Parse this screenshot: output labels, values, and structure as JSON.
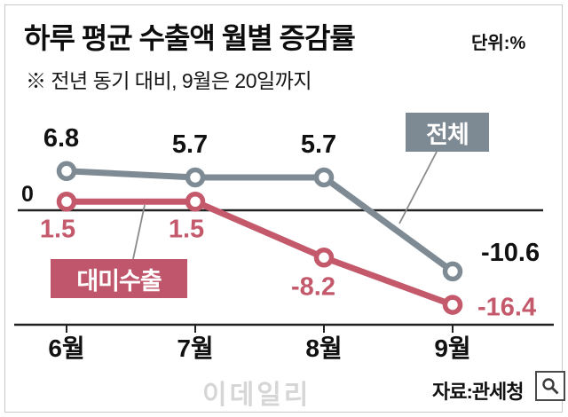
{
  "title": "하루 평균 수출액 월별 증감률",
  "unit_label": "단위:%",
  "subtitle": "※ 전년 동기 대비, 9월은 20일까지",
  "source_label": "자료:관세청",
  "watermark": "이데일리",
  "colors": {
    "total_line": "#7f8b94",
    "total_badge": "#7d8a93",
    "us_line": "#c4596b",
    "us_badge": "#c0566b",
    "axis": "#222222",
    "value_text_total": "#111111"
  },
  "chart_data": {
    "type": "line",
    "categories": [
      "6월",
      "7월",
      "8월",
      "9월"
    ],
    "series": [
      {
        "name": "전체",
        "values": [
          6.8,
          5.7,
          5.7,
          -10.6
        ],
        "color": "#7f8b94"
      },
      {
        "name": "대미수출",
        "values": [
          1.5,
          1.5,
          -8.2,
          -16.4
        ],
        "color": "#c4596b"
      }
    ],
    "baseline": 0,
    "baseline_label": "0",
    "ylim": [
      -20,
      12
    ],
    "xlabel": "",
    "ylabel": "",
    "grid": false,
    "legend_position": "inline-callout-badges",
    "note": "전년 동기 대비, 9월은 20일까지"
  }
}
